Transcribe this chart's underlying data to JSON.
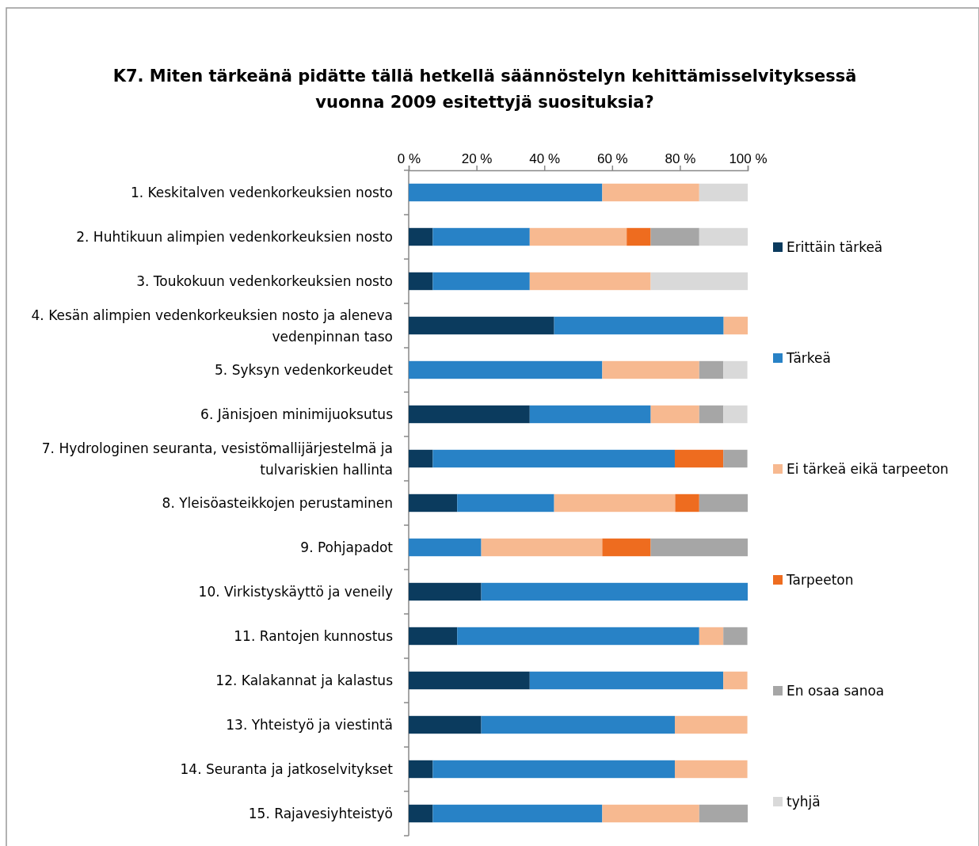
{
  "chart_data": {
    "type": "bar",
    "orientation": "horizontal",
    "stacked": true,
    "title": "K7. Miten tärkeänä pidätte tällä hetkellä säännöstelyn kehittämisselvityksessä vuonna 2009 esitettyjä suosituksia?",
    "categories": [
      "1. Keskitalven vedenkorkeuksien nosto",
      "2. Huhtikuun alimpien vedenkorkeuksien nosto",
      "3. Toukokuun vedenkorkeuksien nosto",
      "4. Kesän alimpien vedenkorkeuksien nosto ja aleneva vedenpinnan taso",
      "5. Syksyn vedenkorkeudet",
      "6. Jänisjoen minimijuoksutus",
      "7. Hydrologinen seuranta, vesistömallijärjestelmä ja tulvariskien hallinta",
      "8. Yleisöasteikkojen perustaminen",
      "9. Pohjapadot",
      "10. Virkistyskäyttö ja veneily",
      "11. Rantojen kunnostus",
      "12. Kalakannat ja kalastus",
      "13. Yhteistyö ja viestintä",
      "14. Seuranta ja jatkoselvitykset",
      "15. Rajavesiyhteistyö"
    ],
    "series": [
      {
        "name": "Erittäin tärkeä",
        "color": "#0b3b5e",
        "values": [
          0,
          7.1,
          7.1,
          42.9,
          0,
          35.7,
          7.1,
          14.3,
          0,
          21.4,
          14.3,
          35.7,
          21.4,
          7.1,
          7.1
        ]
      },
      {
        "name": "Tärkeä",
        "color": "#2882c6",
        "values": [
          57.1,
          28.6,
          28.6,
          50,
          57.1,
          35.7,
          71.4,
          28.6,
          21.4,
          78.6,
          71.4,
          57.1,
          57.1,
          71.4,
          50
        ]
      },
      {
        "name": "Ei tärkeä eikä tarpeeton",
        "color": "#f7b990",
        "values": [
          28.6,
          28.6,
          35.7,
          7.1,
          28.6,
          14.3,
          0,
          35.7,
          35.7,
          0,
          7.1,
          7.1,
          21.4,
          21.4,
          28.6
        ]
      },
      {
        "name": "Tarpeeton",
        "color": "#ee6c1f",
        "values": [
          0,
          7.1,
          0,
          0,
          0,
          0,
          14.3,
          7.1,
          14.3,
          0,
          0,
          0,
          0,
          0,
          0
        ]
      },
      {
        "name": "En osaa sanoa",
        "color": "#a6a6a6",
        "values": [
          0,
          14.3,
          0,
          0,
          7.1,
          7.1,
          7.1,
          14.3,
          28.6,
          0,
          7.1,
          0,
          0,
          0,
          14.3
        ]
      },
      {
        "name": "tyhjä",
        "color": "#d9d9d9",
        "values": [
          14.3,
          14.3,
          28.6,
          0,
          7.1,
          7.1,
          0,
          0,
          0,
          0,
          0,
          0,
          0,
          0,
          0
        ]
      }
    ],
    "xlim": [
      0,
      100
    ],
    "xticks": [
      {
        "value": 0,
        "label": "0 %"
      },
      {
        "value": 20,
        "label": "20 %"
      },
      {
        "value": 40,
        "label": "40 %"
      },
      {
        "value": 60,
        "label": "60 %"
      },
      {
        "value": 80,
        "label": "80 %"
      },
      {
        "value": 100,
        "label": "100 %"
      }
    ],
    "legend": "right",
    "grid": false
  }
}
